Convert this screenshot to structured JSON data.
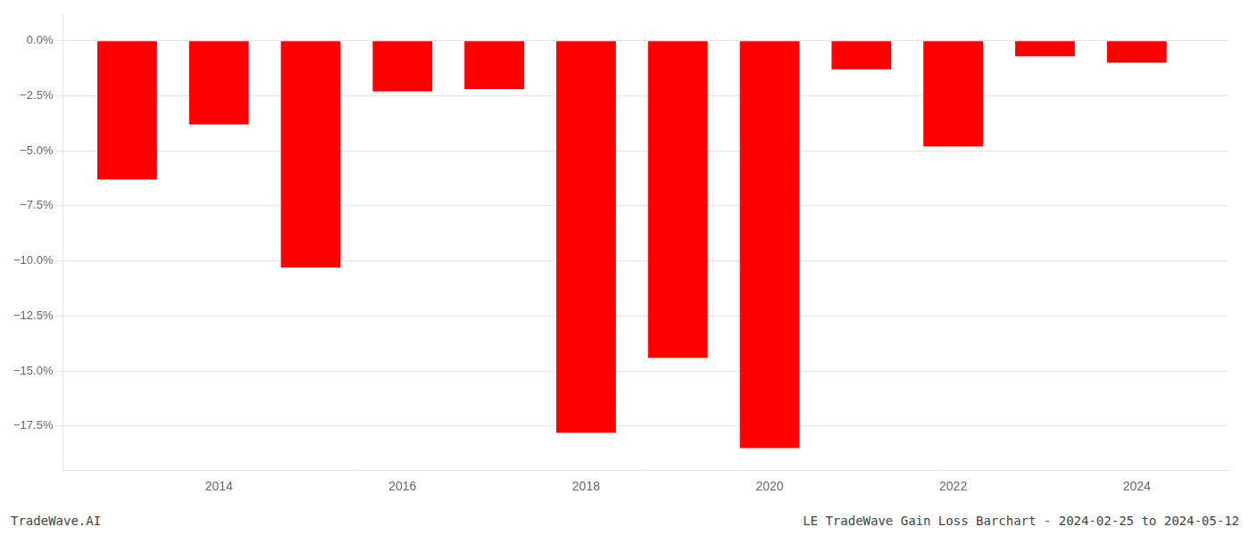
{
  "chart_data": {
    "type": "bar",
    "x": [
      2013,
      2014,
      2015,
      2016,
      2017,
      2018,
      2019,
      2020,
      2021,
      2022,
      2023,
      2024
    ],
    "values": [
      -6.3,
      -3.8,
      -10.3,
      -2.3,
      -2.2,
      -17.8,
      -14.4,
      -18.5,
      -1.3,
      -4.8,
      -0.7,
      -1.0
    ],
    "color": "#ff0000",
    "xlim": [
      2012.3,
      2025.0
    ],
    "xticks": [
      2014,
      2016,
      2018,
      2020,
      2022,
      2024
    ],
    "ylim": [
      -19.5,
      1.2
    ],
    "yticks": [
      {
        "value": 0.0,
        "label": "0.0%"
      },
      {
        "value": -2.5,
        "label": "−2.5%"
      },
      {
        "value": -5.0,
        "label": "−5.0%"
      },
      {
        "value": -7.5,
        "label": "−7.5%"
      },
      {
        "value": -10.0,
        "label": "−10.0%"
      },
      {
        "value": -12.5,
        "label": "−12.5%"
      },
      {
        "value": -15.0,
        "label": "−15.0%"
      },
      {
        "value": -17.5,
        "label": "−17.5%"
      }
    ],
    "grid": true,
    "annotations": [
      "TradeWave.AI",
      "LE TradeWave Gain Loss Barchart - 2024-02-25 to 2024-05-12"
    ]
  }
}
